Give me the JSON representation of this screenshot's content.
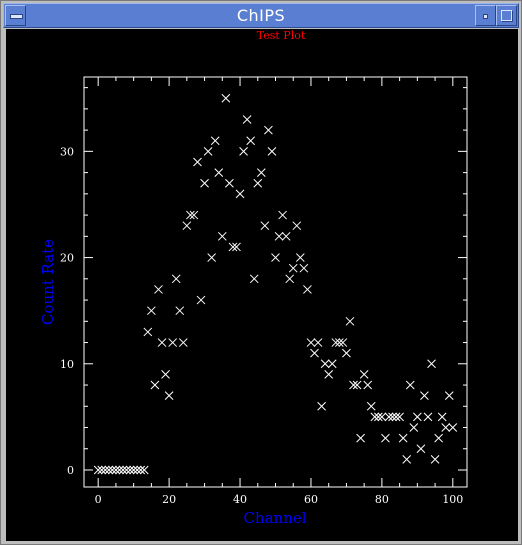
{
  "window": {
    "title": "ChIPS"
  },
  "colors": {
    "titlebar": "#5a7fd2",
    "plot_bg": "#000000",
    "axes": "#ffffff",
    "marker": "#ffffff",
    "title": "#ff0000",
    "axis_labels": "#0000ff"
  },
  "icons": {
    "menu": "window-menu-icon",
    "minimize": "minimize-icon",
    "maximize": "maximize-icon"
  },
  "chart_data": {
    "type": "scatter",
    "title": "Test Plot",
    "xlabel": "Channel",
    "ylabel": "Count Rate",
    "marker": "x",
    "xlim": [
      -4,
      104
    ],
    "ylim": [
      -1.6,
      37
    ],
    "xticks": [
      0,
      20,
      40,
      60,
      80,
      100
    ],
    "yticks": [
      0,
      10,
      20,
      30
    ],
    "x_minor_step": 5,
    "y_minor_step": 2,
    "x": [
      0,
      1,
      2,
      3,
      4,
      5,
      6,
      7,
      8,
      9,
      10,
      11,
      12,
      13,
      14,
      15,
      16,
      17,
      18,
      19,
      20,
      21,
      22,
      23,
      24,
      25,
      26,
      27,
      28,
      29,
      30,
      31,
      32,
      33,
      34,
      35,
      36,
      37,
      38,
      39,
      40,
      41,
      42,
      43,
      44,
      45,
      46,
      47,
      48,
      49,
      50,
      51,
      52,
      53,
      54,
      55,
      56,
      57,
      58,
      59,
      60,
      61,
      62,
      63,
      64,
      65,
      66,
      67,
      68,
      69,
      70,
      71,
      72,
      73,
      74,
      75,
      76,
      77,
      78,
      79,
      80,
      81,
      82,
      83,
      84,
      85,
      86,
      87,
      88,
      89,
      90,
      91,
      92,
      93,
      94,
      95,
      96,
      97,
      98,
      99,
      100
    ],
    "y": [
      0,
      0,
      0,
      0,
      0,
      0,
      0,
      0,
      0,
      0,
      0,
      0,
      0,
      0,
      13,
      15,
      8,
      17,
      12,
      9,
      7,
      12,
      18,
      15,
      12,
      23,
      24,
      24,
      29,
      16,
      27,
      30,
      20,
      31,
      28,
      22,
      35,
      27,
      21,
      21,
      26,
      30,
      33,
      31,
      18,
      27,
      28,
      23,
      32,
      30,
      20,
      22,
      24,
      22,
      18,
      19,
      23,
      20,
      19,
      17,
      12,
      11,
      12,
      6,
      10,
      9,
      10,
      12,
      12,
      12,
      11,
      14,
      8,
      8,
      3,
      9,
      8,
      6,
      5,
      5,
      5,
      3,
      5,
      5,
      5,
      5,
      3,
      1,
      8,
      4,
      5,
      2,
      7,
      5,
      10,
      1,
      3,
      5,
      4,
      7,
      4
    ]
  }
}
